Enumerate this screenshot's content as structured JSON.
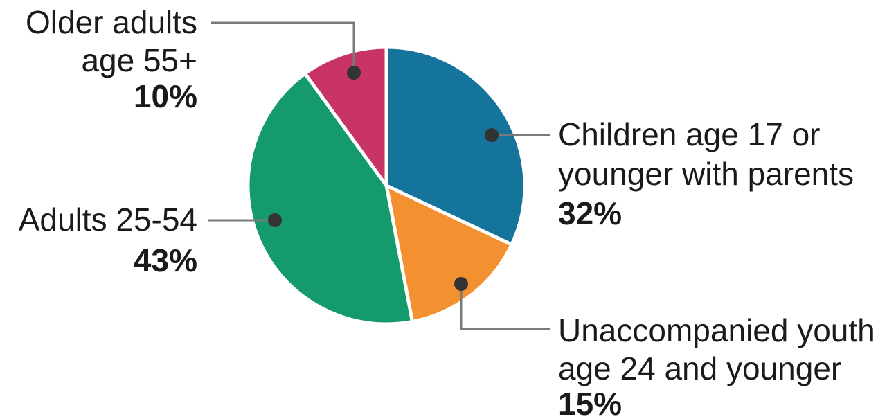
{
  "chart_data": {
    "type": "pie",
    "start_angle_deg": 0,
    "direction": "clockwise",
    "slices": [
      {
        "label_lines": [
          "Children age 17 or",
          "younger with parents"
        ],
        "value": 32,
        "value_label": "32%",
        "color": "#14749b"
      },
      {
        "label_lines": [
          "Unaccompanied youth",
          "age 24 and younger"
        ],
        "value": 15,
        "value_label": "15%",
        "color": "#f39131"
      },
      {
        "label_lines": [
          "Adults 25-54"
        ],
        "value": 43,
        "value_label": "43%",
        "color": "#159a6c"
      },
      {
        "label_lines": [
          "Older adults",
          "age 55+"
        ],
        "value": 10,
        "value_label": "10%",
        "color": "#c83564"
      }
    ]
  }
}
